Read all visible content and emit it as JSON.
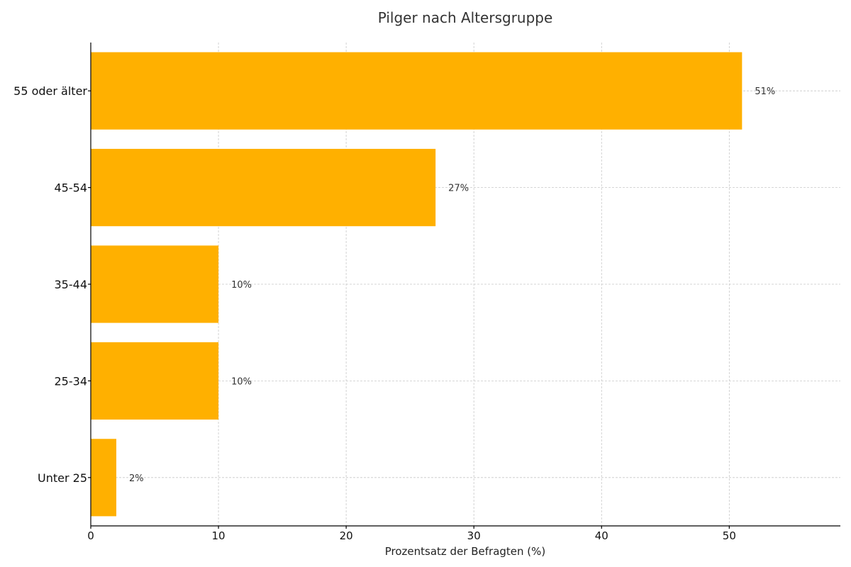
{
  "chart_data": {
    "type": "bar",
    "orientation": "horizontal",
    "title": "Pilger nach Altersgruppe",
    "xlabel": "Prozentsatz der Befragten (%)",
    "ylabel": "",
    "categories": [
      "55 oder älter",
      "45-54",
      "35-44",
      "25-34",
      "Unter 25"
    ],
    "values": [
      51,
      27,
      10,
      10,
      2
    ],
    "data_labels": [
      "51%",
      "27%",
      "10%",
      "10%",
      "2%"
    ],
    "xlim": [
      0,
      58.7
    ],
    "xticks": [
      0,
      10,
      20,
      30,
      40,
      50
    ],
    "grid": true,
    "legend": "none",
    "bar_color": "#FFB000"
  }
}
